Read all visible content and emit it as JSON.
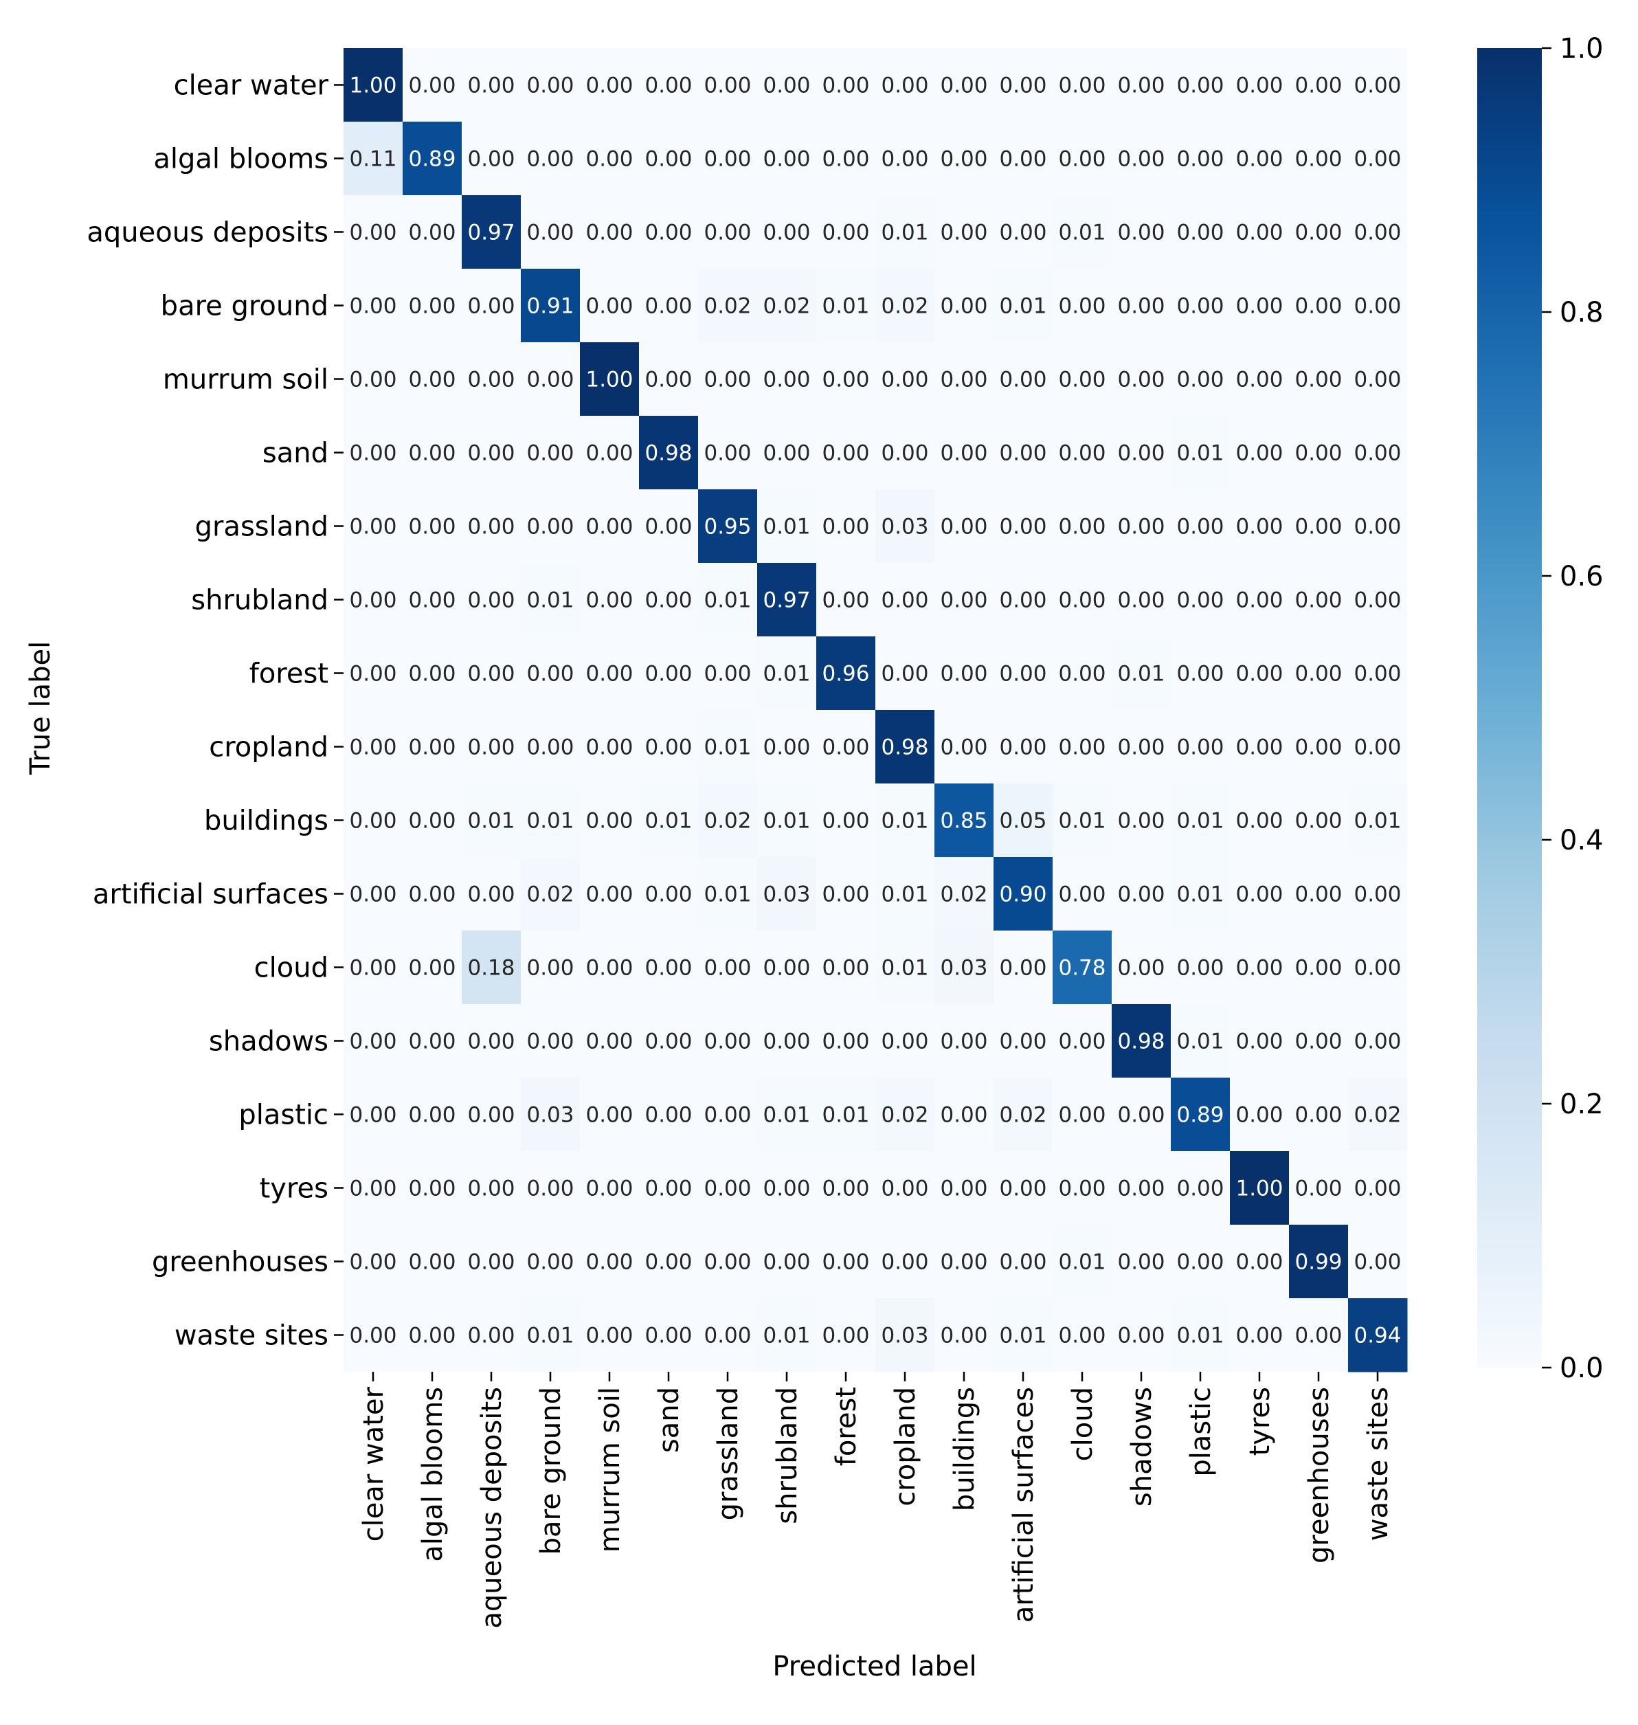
{
  "chart_data": {
    "type": "heatmap",
    "title": "",
    "xlabel": "Predicted label",
    "ylabel": "True label",
    "categories": [
      "clear water",
      "algal blooms",
      "aqueous deposits",
      "bare ground",
      "murrum soil",
      "sand",
      "grassland",
      "shrubland",
      "forest",
      "cropland",
      "buildings",
      "artificial surfaces",
      "cloud",
      "shadows",
      "plastic",
      "tyres",
      "greenhouses",
      "waste sites"
    ],
    "row_labels": [
      "clear water",
      "algal blooms",
      "aqueous deposits",
      "bare ground",
      "murrum soil",
      "sand",
      "grassland",
      "shrubland",
      "forest",
      "cropland",
      "buildings",
      "artificial surfaces",
      "cloud",
      "shadows",
      "plastic",
      "tyres",
      "greenhouses",
      "waste sites"
    ],
    "values": [
      [
        1.0,
        0.0,
        0.0,
        0.0,
        0.0,
        0.0,
        0.0,
        0.0,
        0.0,
        0.0,
        0.0,
        0.0,
        0.0,
        0.0,
        0.0,
        0.0,
        0.0,
        0.0
      ],
      [
        0.11,
        0.89,
        0.0,
        0.0,
        0.0,
        0.0,
        0.0,
        0.0,
        0.0,
        0.0,
        0.0,
        0.0,
        0.0,
        0.0,
        0.0,
        0.0,
        0.0,
        0.0
      ],
      [
        0.0,
        0.0,
        0.97,
        0.0,
        0.0,
        0.0,
        0.0,
        0.0,
        0.0,
        0.01,
        0.0,
        0.0,
        0.01,
        0.0,
        0.0,
        0.0,
        0.0,
        0.0
      ],
      [
        0.0,
        0.0,
        0.0,
        0.91,
        0.0,
        0.0,
        0.02,
        0.02,
        0.01,
        0.02,
        0.0,
        0.01,
        0.0,
        0.0,
        0.0,
        0.0,
        0.0,
        0.0
      ],
      [
        0.0,
        0.0,
        0.0,
        0.0,
        1.0,
        0.0,
        0.0,
        0.0,
        0.0,
        0.0,
        0.0,
        0.0,
        0.0,
        0.0,
        0.0,
        0.0,
        0.0,
        0.0
      ],
      [
        0.0,
        0.0,
        0.0,
        0.0,
        0.0,
        0.98,
        0.0,
        0.0,
        0.0,
        0.0,
        0.0,
        0.0,
        0.0,
        0.0,
        0.01,
        0.0,
        0.0,
        0.0
      ],
      [
        0.0,
        0.0,
        0.0,
        0.0,
        0.0,
        0.0,
        0.95,
        0.01,
        0.0,
        0.03,
        0.0,
        0.0,
        0.0,
        0.0,
        0.0,
        0.0,
        0.0,
        0.0
      ],
      [
        0.0,
        0.0,
        0.0,
        0.01,
        0.0,
        0.0,
        0.01,
        0.97,
        0.0,
        0.0,
        0.0,
        0.0,
        0.0,
        0.0,
        0.0,
        0.0,
        0.0,
        0.0
      ],
      [
        0.0,
        0.0,
        0.0,
        0.0,
        0.0,
        0.0,
        0.0,
        0.01,
        0.96,
        0.0,
        0.0,
        0.0,
        0.0,
        0.01,
        0.0,
        0.0,
        0.0,
        0.0
      ],
      [
        0.0,
        0.0,
        0.0,
        0.0,
        0.0,
        0.0,
        0.01,
        0.0,
        0.0,
        0.98,
        0.0,
        0.0,
        0.0,
        0.0,
        0.0,
        0.0,
        0.0,
        0.0
      ],
      [
        0.0,
        0.0,
        0.01,
        0.01,
        0.0,
        0.01,
        0.02,
        0.01,
        0.0,
        0.01,
        0.85,
        0.05,
        0.01,
        0.0,
        0.01,
        0.0,
        0.0,
        0.01
      ],
      [
        0.0,
        0.0,
        0.0,
        0.02,
        0.0,
        0.0,
        0.01,
        0.03,
        0.0,
        0.01,
        0.02,
        0.9,
        0.0,
        0.0,
        0.01,
        0.0,
        0.0,
        0.0
      ],
      [
        0.0,
        0.0,
        0.18,
        0.0,
        0.0,
        0.0,
        0.0,
        0.0,
        0.0,
        0.01,
        0.03,
        0.0,
        0.78,
        0.0,
        0.0,
        0.0,
        0.0,
        0.0
      ],
      [
        0.0,
        0.0,
        0.0,
        0.0,
        0.0,
        0.0,
        0.0,
        0.0,
        0.0,
        0.0,
        0.0,
        0.0,
        0.0,
        0.98,
        0.01,
        0.0,
        0.0,
        0.0
      ],
      [
        0.0,
        0.0,
        0.0,
        0.03,
        0.0,
        0.0,
        0.0,
        0.01,
        0.01,
        0.02,
        0.0,
        0.02,
        0.0,
        0.0,
        0.89,
        0.0,
        0.0,
        0.02
      ],
      [
        0.0,
        0.0,
        0.0,
        0.0,
        0.0,
        0.0,
        0.0,
        0.0,
        0.0,
        0.0,
        0.0,
        0.0,
        0.0,
        0.0,
        0.0,
        1.0,
        0.0,
        0.0
      ],
      [
        0.0,
        0.0,
        0.0,
        0.0,
        0.0,
        0.0,
        0.0,
        0.0,
        0.0,
        0.0,
        0.0,
        0.0,
        0.01,
        0.0,
        0.0,
        0.0,
        0.99,
        0.0
      ],
      [
        0.0,
        0.0,
        0.0,
        0.01,
        0.0,
        0.0,
        0.0,
        0.01,
        0.0,
        0.03,
        0.0,
        0.01,
        0.0,
        0.0,
        0.01,
        0.0,
        0.0,
        0.94
      ]
    ],
    "colorbar": {
      "range": [
        0.0,
        1.0
      ],
      "ticks": [
        0.0,
        0.2,
        0.4,
        0.6,
        0.8,
        1.0
      ],
      "tick_labels": [
        "0.0",
        "0.2",
        "0.4",
        "0.6",
        "0.8",
        "1.0"
      ],
      "colormap": "Blues"
    },
    "cell_value_format": "2 decimals"
  },
  "colors": {
    "cmap_low": "#f7fbff",
    "cmap_high": "#08306b",
    "text_dark": "#262626",
    "text_light": "#ffffff"
  }
}
